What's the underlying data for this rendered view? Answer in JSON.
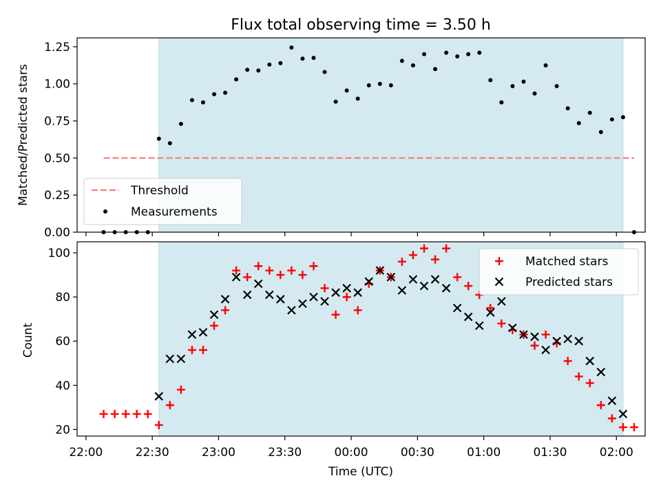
{
  "chart_data": {
    "type": "scatter",
    "title": "Flux total observing time = 3.50 h",
    "xlabel": "Time (UTC)",
    "x_tick_labels": [
      "22:00",
      "22:30",
      "23:00",
      "23:30",
      "00:00",
      "00:30",
      "01:00",
      "01:30",
      "02:00"
    ],
    "x_tick_minutes": [
      0,
      30,
      60,
      90,
      120,
      150,
      180,
      210,
      240
    ],
    "x_range_minutes": [
      -4,
      253
    ],
    "shaded_window_minutes": [
      33,
      243
    ],
    "shaded_color": "#d4eaf0",
    "top_panel": {
      "ylabel": "Matched/Predicted stars",
      "ylim": [
        0,
        1.31
      ],
      "y_tick_labels": [
        "0.00",
        "0.25",
        "0.50",
        "0.75",
        "1.00",
        "1.25"
      ],
      "y_ticks": [
        0,
        0.25,
        0.5,
        0.75,
        1.0,
        1.25
      ],
      "threshold": {
        "name": "Threshold",
        "value": 0.5,
        "x_start": 8,
        "x_end": 248,
        "color": "#f08080"
      },
      "measurements": {
        "name": "Measurements",
        "color": "#000000",
        "x": [
          8,
          13,
          18,
          23,
          28,
          33,
          38,
          43,
          48,
          53,
          58,
          63,
          68,
          73,
          78,
          83,
          88,
          93,
          98,
          103,
          108,
          113,
          118,
          123,
          128,
          133,
          138,
          143,
          148,
          153,
          158,
          163,
          168,
          173,
          178,
          183,
          188,
          193,
          198,
          203,
          208,
          213,
          218,
          223,
          228,
          233,
          238,
          243,
          248
        ],
        "y": [
          0,
          0,
          0,
          0,
          0,
          0.63,
          0.6,
          0.73,
          0.89,
          0.875,
          0.93,
          0.94,
          1.03,
          1.095,
          1.09,
          1.13,
          1.14,
          1.245,
          1.17,
          1.175,
          1.08,
          0.88,
          0.955,
          0.9,
          0.99,
          1.0,
          0.99,
          1.155,
          1.125,
          1.2,
          1.1,
          1.21,
          1.185,
          1.2,
          1.21,
          1.025,
          0.875,
          0.985,
          1.015,
          0.935,
          1.125,
          0.985,
          0.835,
          0.735,
          0.805,
          0.675,
          0.76,
          0.775,
          0
        ]
      },
      "legend": "lower-left"
    },
    "bottom_panel": {
      "ylabel": "Count",
      "ylim": [
        17,
        105
      ],
      "y_tick_labels": [
        "20",
        "40",
        "60",
        "80",
        "100"
      ],
      "y_ticks": [
        20,
        40,
        60,
        80,
        100
      ],
      "legend": "upper-right",
      "series": [
        {
          "name": "Matched stars",
          "marker": "plus",
          "color": "#ff0000",
          "x": [
            8,
            13,
            18,
            23,
            28,
            33,
            38,
            43,
            48,
            53,
            58,
            63,
            68,
            73,
            78,
            83,
            88,
            93,
            98,
            103,
            108,
            113,
            118,
            123,
            128,
            133,
            138,
            143,
            148,
            153,
            158,
            163,
            168,
            173,
            178,
            183,
            188,
            193,
            198,
            203,
            208,
            213,
            218,
            223,
            228,
            233,
            238,
            243,
            248
          ],
          "y": [
            27,
            27,
            27,
            27,
            27,
            22,
            31,
            38,
            56,
            56,
            67,
            74,
            92,
            89,
            94,
            92,
            90,
            92,
            90,
            94,
            84,
            72,
            80,
            74,
            86,
            92,
            89,
            96,
            99,
            102,
            97,
            102,
            89,
            85,
            81,
            75,
            68,
            65,
            63,
            58,
            63,
            59,
            51,
            44,
            41,
            31,
            25,
            21,
            21
          ]
        },
        {
          "name": "Predicted stars",
          "marker": "x",
          "color": "#000000",
          "x": [
            33,
            38,
            43,
            48,
            53,
            58,
            63,
            68,
            73,
            78,
            83,
            88,
            93,
            98,
            103,
            108,
            113,
            118,
            123,
            128,
            133,
            138,
            143,
            148,
            153,
            158,
            163,
            168,
            173,
            178,
            183,
            188,
            193,
            198,
            203,
            208,
            213,
            218,
            223,
            228,
            233,
            238,
            243
          ],
          "y": [
            35,
            52,
            52,
            63,
            64,
            72,
            79,
            89,
            81,
            86,
            81,
            79,
            74,
            77,
            80,
            78,
            82,
            84,
            82,
            87,
            92,
            89,
            83,
            88,
            85,
            88,
            84,
            75,
            71,
            67,
            73,
            78,
            66,
            63,
            62,
            56,
            60,
            61,
            60,
            51,
            46,
            33,
            27
          ]
        }
      ]
    }
  }
}
